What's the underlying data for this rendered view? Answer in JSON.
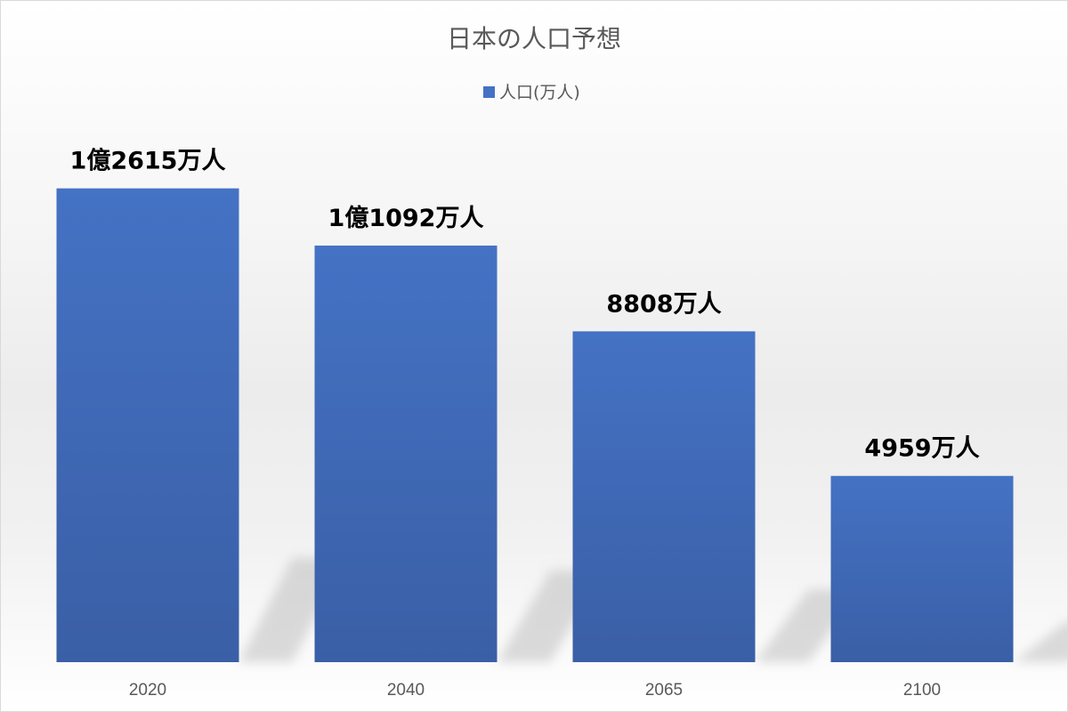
{
  "colors": {
    "bar": "#4472c4",
    "bar_dark": "#3a5fa6",
    "shadow": "#bfbfbf",
    "text_muted": "#595959",
    "label": "#000000"
  },
  "chart_data": {
    "type": "bar",
    "title": "日本の人口予想",
    "xlabel": "",
    "ylabel": "",
    "legend_position": "top-center",
    "grid": false,
    "categories": [
      "2020",
      "2040",
      "2065",
      "2100"
    ],
    "series": [
      {
        "name": "人口(万人)",
        "color": "#4472c4",
        "values": [
          12615,
          11092,
          8808,
          4959
        ],
        "data_labels": [
          "1億2615万人",
          "1億1092万人",
          "8808万人",
          "4959万人"
        ]
      }
    ],
    "ylim": [
      0,
      15000
    ]
  }
}
